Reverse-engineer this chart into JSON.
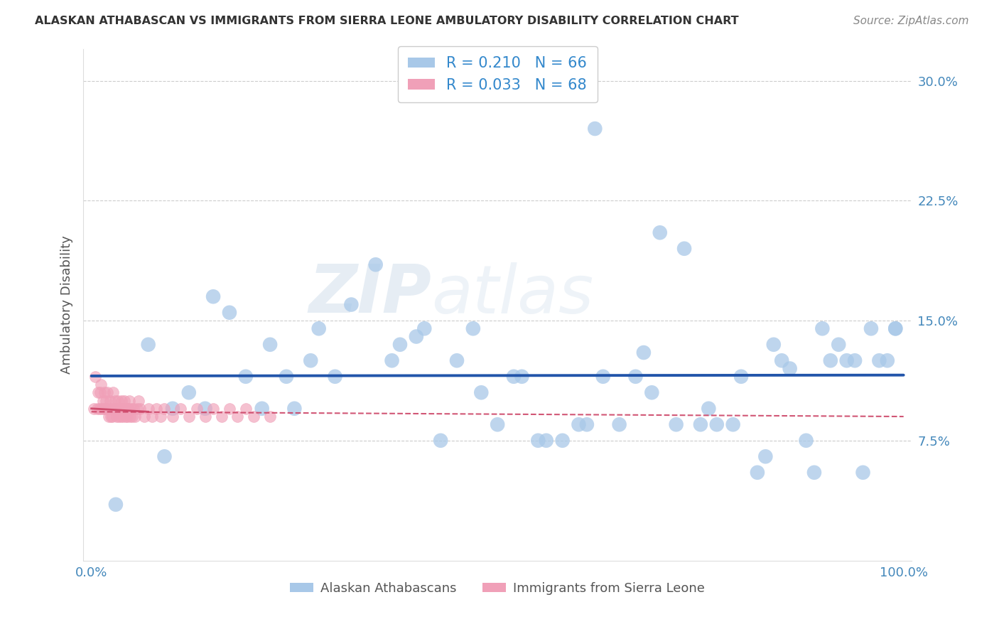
{
  "title": "ALASKAN ATHABASCAN VS IMMIGRANTS FROM SIERRA LEONE AMBULATORY DISABILITY CORRELATION CHART",
  "source": "Source: ZipAtlas.com",
  "ylabel": "Ambulatory Disability",
  "blue_R": 0.21,
  "blue_N": 66,
  "pink_R": 0.033,
  "pink_N": 68,
  "blue_color": "#A8C8E8",
  "blue_line_color": "#2255AA",
  "pink_color": "#F0A0B8",
  "pink_line_color": "#CC4466",
  "blue_x": [
    3,
    7,
    9,
    10,
    12,
    14,
    15,
    17,
    19,
    21,
    22,
    24,
    25,
    27,
    28,
    30,
    32,
    35,
    37,
    38,
    40,
    41,
    43,
    45,
    47,
    48,
    50,
    52,
    53,
    55,
    56,
    58,
    60,
    61,
    62,
    63,
    65,
    67,
    68,
    69,
    70,
    72,
    73,
    75,
    76,
    77,
    79,
    80,
    82,
    83,
    84,
    85,
    86,
    88,
    89,
    90,
    91,
    92,
    93,
    94,
    95,
    96,
    97,
    98,
    99,
    99
  ],
  "blue_y": [
    3.5,
    13.5,
    6.5,
    9.5,
    10.5,
    9.5,
    16.5,
    15.5,
    11.5,
    9.5,
    13.5,
    11.5,
    9.5,
    12.5,
    14.5,
    11.5,
    16.0,
    18.5,
    12.5,
    13.5,
    14.0,
    14.5,
    7.5,
    12.5,
    14.5,
    10.5,
    8.5,
    11.5,
    11.5,
    7.5,
    7.5,
    7.5,
    8.5,
    8.5,
    27.0,
    11.5,
    8.5,
    11.5,
    13.0,
    10.5,
    20.5,
    8.5,
    19.5,
    8.5,
    9.5,
    8.5,
    8.5,
    11.5,
    5.5,
    6.5,
    13.5,
    12.5,
    12.0,
    7.5,
    5.5,
    14.5,
    12.5,
    13.5,
    12.5,
    12.5,
    5.5,
    14.5,
    12.5,
    12.5,
    14.5,
    14.5
  ],
  "pink_x": [
    0.3,
    0.5,
    0.7,
    0.8,
    1.0,
    1.1,
    1.2,
    1.3,
    1.4,
    1.5,
    1.6,
    1.7,
    1.8,
    1.9,
    2.0,
    2.1,
    2.2,
    2.3,
    2.4,
    2.5,
    2.6,
    2.7,
    2.8,
    2.9,
    3.0,
    3.1,
    3.2,
    3.3,
    3.4,
    3.5,
    3.6,
    3.7,
    3.8,
    3.9,
    4.0,
    4.1,
    4.2,
    4.3,
    4.4,
    4.5,
    4.6,
    4.7,
    4.8,
    4.9,
    5.0,
    5.2,
    5.4,
    5.6,
    5.8,
    6.0,
    6.5,
    7.0,
    7.5,
    8.0,
    8.5,
    9.0,
    10.0,
    11.0,
    12.0,
    13.0,
    14.0,
    15.0,
    16.0,
    17.0,
    18.0,
    19.0,
    20.0,
    22.0
  ],
  "pink_y": [
    9.5,
    11.5,
    9.5,
    10.5,
    9.5,
    10.5,
    11.0,
    9.5,
    10.0,
    9.5,
    10.5,
    9.5,
    10.0,
    9.5,
    10.5,
    9.0,
    9.5,
    10.0,
    9.0,
    9.5,
    9.0,
    10.5,
    9.5,
    10.0,
    9.5,
    9.0,
    9.5,
    10.0,
    9.0,
    9.5,
    9.0,
    10.0,
    9.5,
    9.0,
    9.5,
    10.0,
    9.0,
    9.5,
    9.0,
    9.5,
    9.5,
    10.0,
    9.0,
    9.5,
    9.0,
    9.5,
    9.0,
    9.5,
    10.0,
    9.5,
    9.0,
    9.5,
    9.0,
    9.5,
    9.0,
    9.5,
    9.0,
    9.5,
    9.0,
    9.5,
    9.0,
    9.5,
    9.0,
    9.5,
    9.0,
    9.5,
    9.0,
    9.0
  ],
  "watermark_zip": "ZIP",
  "watermark_atlas": "atlas",
  "background_color": "#FFFFFF",
  "grid_color": "#CCCCCC"
}
